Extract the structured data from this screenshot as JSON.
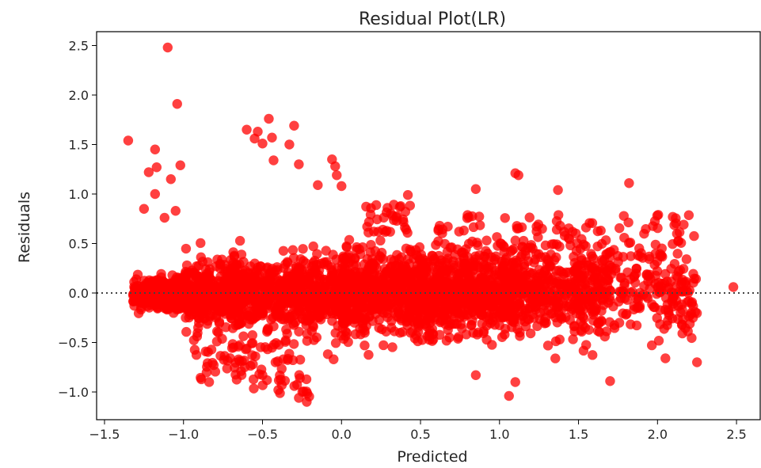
{
  "chart_data": {
    "type": "scatter",
    "title": "Residual Plot(LR)",
    "xlabel": "Predicted",
    "ylabel": "Residuals",
    "xlim": [
      -1.55,
      2.65
    ],
    "ylim": [
      -1.28,
      2.64
    ],
    "xticks": [
      -1.5,
      -1.0,
      -0.5,
      0.0,
      0.5,
      1.0,
      1.5,
      2.0,
      2.5
    ],
    "xtick_labels": [
      "−1.5",
      "−1.0",
      "−0.5",
      "0.0",
      "0.5",
      "1.0",
      "1.5",
      "2.0",
      "2.5"
    ],
    "yticks": [
      -1.0,
      -0.5,
      0.0,
      0.5,
      1.0,
      1.5,
      2.0,
      2.5
    ],
    "ytick_labels": [
      "−1.0",
      "−0.5",
      "0.0",
      "0.5",
      "1.0",
      "1.5",
      "2.0",
      "2.5"
    ],
    "reference_line": {
      "y": 0.0,
      "style": "dotted",
      "color": "#444444"
    },
    "marker_color": "#ff0000",
    "marker_alpha": 0.75,
    "grid": false,
    "legend": "none",
    "notable_points": [
      {
        "x": -1.1,
        "y": 2.48
      },
      {
        "x": -1.04,
        "y": 1.91
      },
      {
        "x": -1.35,
        "y": 1.54
      },
      {
        "x": -1.18,
        "y": 1.45
      },
      {
        "x": -1.22,
        "y": 1.22
      },
      {
        "x": -1.17,
        "y": 1.27
      },
      {
        "x": -1.02,
        "y": 1.29
      },
      {
        "x": -1.08,
        "y": 1.15
      },
      {
        "x": -1.18,
        "y": 1.0
      },
      {
        "x": -1.25,
        "y": 0.85
      },
      {
        "x": -1.05,
        "y": 0.83
      },
      {
        "x": -1.12,
        "y": 0.76
      },
      {
        "x": -0.6,
        "y": 1.65
      },
      {
        "x": -0.53,
        "y": 1.63
      },
      {
        "x": -0.46,
        "y": 1.76
      },
      {
        "x": -0.3,
        "y": 1.69
      },
      {
        "x": -0.44,
        "y": 1.57
      },
      {
        "x": -0.5,
        "y": 1.51
      },
      {
        "x": -0.33,
        "y": 1.5
      },
      {
        "x": -0.43,
        "y": 1.34
      },
      {
        "x": -0.27,
        "y": 1.3
      },
      {
        "x": -0.55,
        "y": 1.56
      },
      {
        "x": -0.06,
        "y": 1.35
      },
      {
        "x": -0.04,
        "y": 1.28
      },
      {
        "x": -0.03,
        "y": 1.19
      },
      {
        "x": 0.0,
        "y": 1.08
      },
      {
        "x": -0.15,
        "y": 1.09
      },
      {
        "x": 1.1,
        "y": 1.21
      },
      {
        "x": 1.12,
        "y": 1.19
      },
      {
        "x": 1.82,
        "y": 1.11
      },
      {
        "x": 0.85,
        "y": 1.05
      },
      {
        "x": 1.37,
        "y": 1.04
      },
      {
        "x": 0.42,
        "y": 0.99
      },
      {
        "x": 2.48,
        "y": 0.06
      },
      {
        "x": -0.22,
        "y": -1.1
      },
      {
        "x": -0.27,
        "y": -1.06
      },
      {
        "x": -0.4,
        "y": -0.98
      },
      {
        "x": 1.06,
        "y": -1.04
      },
      {
        "x": 1.1,
        "y": -0.9
      },
      {
        "x": 0.85,
        "y": -0.83
      },
      {
        "x": 1.7,
        "y": -0.89
      },
      {
        "x": 2.25,
        "y": -0.7
      },
      {
        "x": 2.05,
        "y": -0.66
      },
      {
        "x": -0.5,
        "y": -0.83
      },
      {
        "x": -0.05,
        "y": -0.67
      }
    ]
  }
}
